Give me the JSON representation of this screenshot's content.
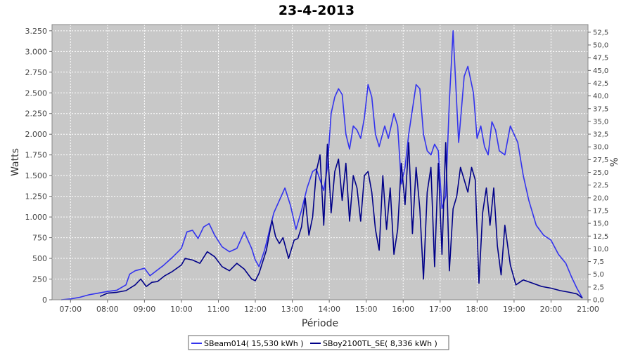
{
  "chart_data": {
    "type": "line",
    "title": "23-4-2013",
    "xlabel": "Période",
    "ylabel": "Watts",
    "y2label": "%",
    "x_unit": "hours",
    "xlim": [
      6.5,
      21.0
    ],
    "ylim": [
      0,
      3325
    ],
    "y2lim": [
      0,
      54.0
    ],
    "x_ticks": [
      {
        "value": 7,
        "label": "07:00"
      },
      {
        "value": 8,
        "label": "08:00"
      },
      {
        "value": 9,
        "label": "09:00"
      },
      {
        "value": 10,
        "label": "10:00"
      },
      {
        "value": 11,
        "label": "11:00"
      },
      {
        "value": 12,
        "label": "12:00"
      },
      {
        "value": 13,
        "label": "13:00"
      },
      {
        "value": 14,
        "label": "14:00"
      },
      {
        "value": 15,
        "label": "15:00"
      },
      {
        "value": 16,
        "label": "16:00"
      },
      {
        "value": 17,
        "label": "17:00"
      },
      {
        "value": 18,
        "label": "18:00"
      },
      {
        "value": 19,
        "label": "19:00"
      },
      {
        "value": 20,
        "label": "20:00"
      },
      {
        "value": 21,
        "label": "21:00"
      }
    ],
    "y_ticks": [
      {
        "value": 0,
        "label": "0"
      },
      {
        "value": 250,
        "label": "250"
      },
      {
        "value": 500,
        "label": "500"
      },
      {
        "value": 750,
        "label": "750"
      },
      {
        "value": 1000,
        "label": "1.000"
      },
      {
        "value": 1250,
        "label": "1.250"
      },
      {
        "value": 1500,
        "label": "1.500"
      },
      {
        "value": 1750,
        "label": "1.750"
      },
      {
        "value": 2000,
        "label": "2.000"
      },
      {
        "value": 2250,
        "label": "2.250"
      },
      {
        "value": 2500,
        "label": "2.500"
      },
      {
        "value": 2750,
        "label": "2.750"
      },
      {
        "value": 3000,
        "label": "3.000"
      },
      {
        "value": 3250,
        "label": "3.250"
      }
    ],
    "y2_ticks": [
      {
        "value": 0,
        "label": "0,0"
      },
      {
        "value": 2.5,
        "label": "2,5"
      },
      {
        "value": 5,
        "label": "5,0"
      },
      {
        "value": 7.5,
        "label": "7,5"
      },
      {
        "value": 10,
        "label": "10,0"
      },
      {
        "value": 12.5,
        "label": "12,5"
      },
      {
        "value": 15,
        "label": "15,0"
      },
      {
        "value": 17.5,
        "label": "17,5"
      },
      {
        "value": 20,
        "label": "20,0"
      },
      {
        "value": 22.5,
        "label": "22,5"
      },
      {
        "value": 25,
        "label": "25,0"
      },
      {
        "value": 27.5,
        "label": "27,5"
      },
      {
        "value": 30,
        "label": "30,0"
      },
      {
        "value": 32.5,
        "label": "32,5"
      },
      {
        "value": 35,
        "label": "35,0"
      },
      {
        "value": 37.5,
        "label": "37,5"
      },
      {
        "value": 40,
        "label": "40,0"
      },
      {
        "value": 42.5,
        "label": "42,5"
      },
      {
        "value": 45,
        "label": "45,0"
      },
      {
        "value": 47.5,
        "label": "47,5"
      },
      {
        "value": 50,
        "label": "50,0"
      },
      {
        "value": 52.5,
        "label": "52,5"
      }
    ],
    "grid": true,
    "legend_position": "bottom",
    "series": [
      {
        "name": "SBeam014( 15,530 kWh )",
        "color": "#3333ee",
        "x": [
          6.75,
          7.0,
          7.25,
          7.5,
          7.75,
          8.0,
          8.25,
          8.5,
          8.6,
          8.75,
          9.0,
          9.15,
          9.35,
          9.5,
          9.75,
          10.0,
          10.15,
          10.3,
          10.45,
          10.6,
          10.75,
          10.9,
          11.1,
          11.3,
          11.5,
          11.7,
          11.9,
          12.0,
          12.1,
          12.25,
          12.5,
          12.65,
          12.8,
          12.95,
          13.1,
          13.25,
          13.4,
          13.55,
          13.65,
          13.75,
          13.85,
          13.95,
          14.05,
          14.15,
          14.25,
          14.35,
          14.45,
          14.55,
          14.65,
          14.75,
          14.85,
          14.95,
          15.05,
          15.15,
          15.25,
          15.35,
          15.5,
          15.6,
          15.75,
          15.85,
          15.95,
          16.05,
          16.15,
          16.25,
          16.35,
          16.45,
          16.55,
          16.65,
          16.75,
          16.85,
          16.95,
          17.05,
          17.15,
          17.25,
          17.35,
          17.5,
          17.65,
          17.75,
          17.9,
          18.0,
          18.1,
          18.2,
          18.3,
          18.4,
          18.5,
          18.6,
          18.75,
          18.9,
          19.1,
          19.25,
          19.4,
          19.6,
          19.8,
          20.0,
          20.2,
          20.4,
          20.55,
          20.7,
          20.8,
          20.85
        ],
        "values": [
          0,
          10,
          30,
          60,
          80,
          100,
          115,
          180,
          310,
          350,
          380,
          290,
          360,
          410,
          510,
          620,
          820,
          840,
          740,
          880,
          920,
          780,
          640,
          580,
          620,
          820,
          620,
          480,
          400,
          600,
          1050,
          1200,
          1350,
          1140,
          850,
          1080,
          1350,
          1550,
          1580,
          1450,
          1320,
          1600,
          2250,
          2450,
          2550,
          2480,
          2000,
          1820,
          2100,
          2050,
          1950,
          2200,
          2600,
          2450,
          2000,
          1850,
          2100,
          1950,
          2250,
          2100,
          1400,
          1600,
          2000,
          2300,
          2600,
          2550,
          2000,
          1800,
          1750,
          1880,
          1800,
          1100,
          1250,
          2400,
          3250,
          1900,
          2700,
          2820,
          2500,
          1950,
          2100,
          1850,
          1750,
          2150,
          2050,
          1800,
          1750,
          2100,
          1900,
          1500,
          1200,
          900,
          780,
          720,
          550,
          440,
          280,
          140,
          60,
          20
        ]
      },
      {
        "name": "SBoy2100TL_SE( 8,336 kWh )",
        "color": "#000088",
        "x": [
          7.8,
          8.0,
          8.25,
          8.5,
          8.75,
          8.9,
          9.05,
          9.2,
          9.35,
          9.55,
          9.75,
          10.0,
          10.1,
          10.3,
          10.5,
          10.7,
          10.9,
          11.1,
          11.3,
          11.5,
          11.7,
          11.9,
          12.0,
          12.1,
          12.3,
          12.45,
          12.55,
          12.65,
          12.75,
          12.9,
          13.05,
          13.15,
          13.25,
          13.35,
          13.45,
          13.55,
          13.65,
          13.75,
          13.85,
          13.95,
          14.05,
          14.15,
          14.25,
          14.35,
          14.45,
          14.55,
          14.65,
          14.75,
          14.85,
          14.95,
          15.05,
          15.15,
          15.25,
          15.35,
          15.45,
          15.55,
          15.65,
          15.75,
          15.85,
          15.95,
          16.05,
          16.15,
          16.25,
          16.35,
          16.45,
          16.55,
          16.65,
          16.75,
          16.85,
          16.95,
          17.05,
          17.15,
          17.25,
          17.35,
          17.45,
          17.55,
          17.65,
          17.75,
          17.85,
          17.95,
          18.05,
          18.15,
          18.25,
          18.35,
          18.45,
          18.55,
          18.65,
          18.75,
          18.9,
          19.05,
          19.25,
          19.5,
          19.75,
          20.0,
          20.25,
          20.5,
          20.7,
          20.85
        ],
        "values": [
          40,
          80,
          90,
          110,
          180,
          250,
          160,
          210,
          220,
          290,
          340,
          420,
          500,
          480,
          440,
          580,
          520,
          400,
          350,
          440,
          370,
          250,
          230,
          320,
          600,
          960,
          760,
          680,
          750,
          500,
          720,
          740,
          880,
          1230,
          780,
          1000,
          1550,
          1750,
          900,
          1880,
          1050,
          1550,
          1700,
          1200,
          1650,
          950,
          1500,
          1350,
          950,
          1500,
          1550,
          1300,
          850,
          600,
          1500,
          850,
          1350,
          550,
          850,
          1650,
          1150,
          1900,
          800,
          1600,
          1100,
          250,
          1300,
          1600,
          400,
          1650,
          550,
          1900,
          350,
          1100,
          1250,
          1600,
          1450,
          1300,
          1600,
          1450,
          200,
          1050,
          1350,
          900,
          1350,
          650,
          300,
          900,
          420,
          180,
          240,
          200,
          160,
          140,
          110,
          90,
          70,
          20
        ]
      }
    ]
  }
}
